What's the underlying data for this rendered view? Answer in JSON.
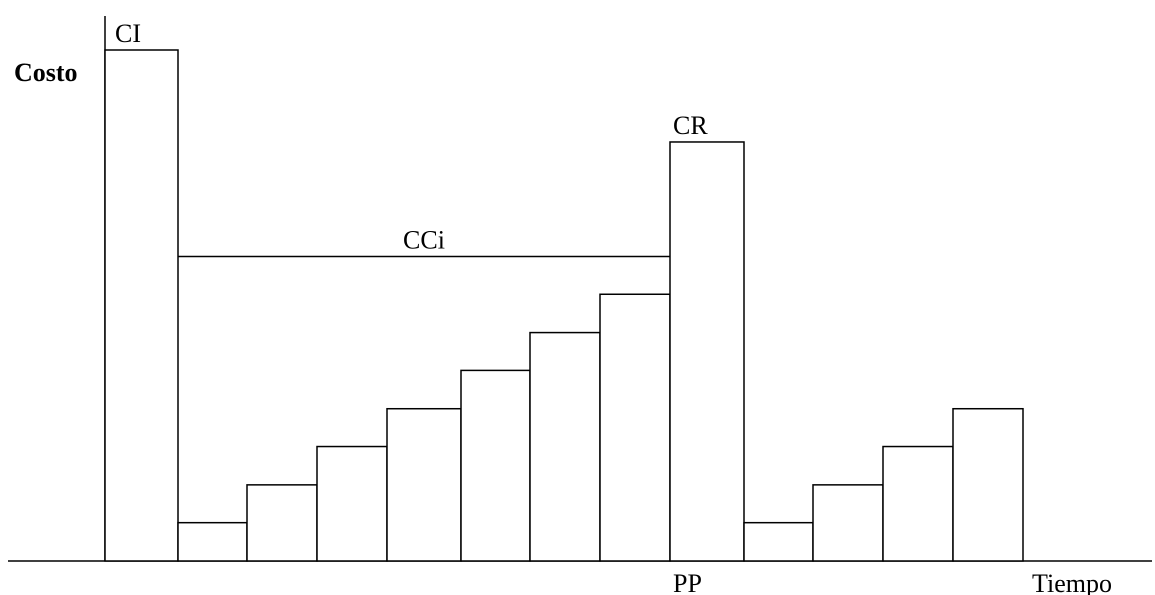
{
  "chart_data": {
    "type": "bar",
    "ylabel": "Costo",
    "xlabel": "Tiempo",
    "ylim": [
      0,
      1
    ],
    "bars": [
      {
        "value": 1.0,
        "label": "CI"
      },
      {
        "value": 0.075
      },
      {
        "value": 0.149
      },
      {
        "value": 0.224
      },
      {
        "value": 0.298
      },
      {
        "value": 0.373
      },
      {
        "value": 0.447
      },
      {
        "value": 0.522
      },
      {
        "value": 0.82,
        "label": "CR",
        "marker": "PP"
      },
      {
        "value": 0.075
      },
      {
        "value": 0.149
      },
      {
        "value": 0.224
      },
      {
        "value": 0.298
      }
    ],
    "reference_line": {
      "label": "CCi",
      "value": 0.596,
      "from_bar": 1,
      "to_bar": 8
    }
  }
}
